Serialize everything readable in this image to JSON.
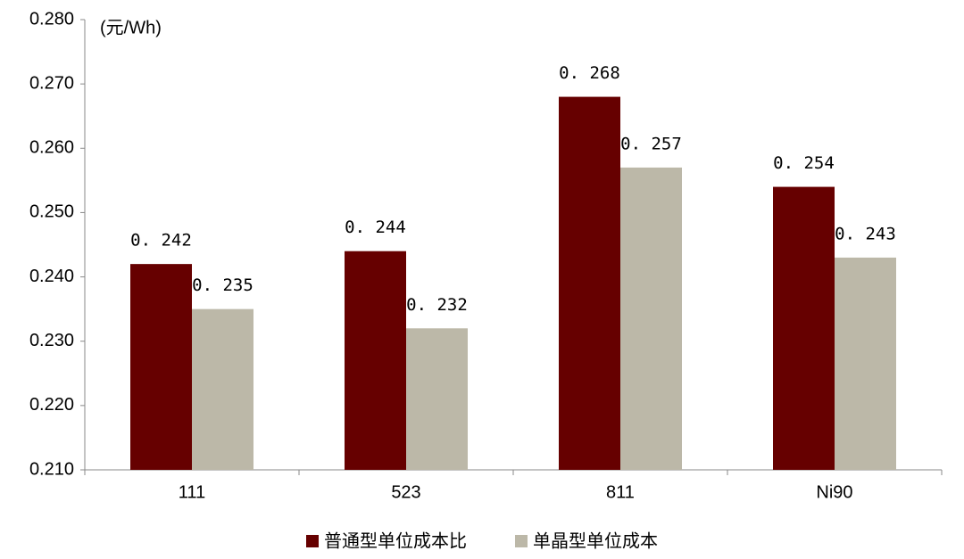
{
  "chart_data": {
    "type": "bar",
    "unit_label": "(元/Wh)",
    "categories": [
      "111",
      "523",
      "811",
      "Ni90"
    ],
    "series": [
      {
        "name": "普通型单位成本比",
        "color": "#660000",
        "values": [
          0.242,
          0.244,
          0.268,
          0.254
        ],
        "value_labels": [
          "0. 242",
          "0. 244",
          "0. 268",
          "0. 254"
        ]
      },
      {
        "name": "单晶型单位成本",
        "color": "#bcb8a8",
        "values": [
          0.235,
          0.232,
          0.257,
          0.243
        ],
        "value_labels": [
          "0. 235",
          "0. 232",
          "0. 257",
          "0. 243"
        ]
      }
    ],
    "ylim": [
      0.21,
      0.28
    ],
    "yticks": [
      {
        "value": 0.21,
        "label": "0.210"
      },
      {
        "value": 0.22,
        "label": "0.220"
      },
      {
        "value": 0.23,
        "label": "0.230"
      },
      {
        "value": 0.24,
        "label": "0.240"
      },
      {
        "value": 0.25,
        "label": "0.250"
      },
      {
        "value": 0.26,
        "label": "0.260"
      },
      {
        "value": 0.27,
        "label": "0.270"
      },
      {
        "value": 0.28,
        "label": "0.280"
      }
    ],
    "grid": false,
    "legend": "bottom"
  }
}
